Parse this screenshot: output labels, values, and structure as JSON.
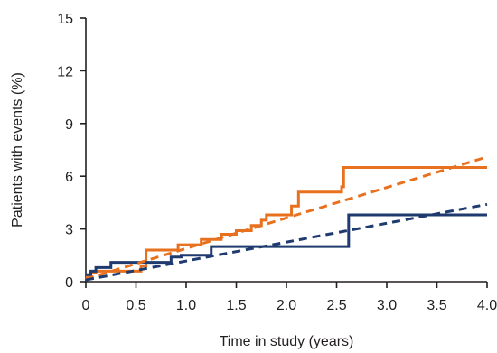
{
  "chart_data": {
    "type": "line",
    "title": "",
    "xlabel": "Time in study (years)",
    "ylabel": "Patients with events (%)",
    "xlim": [
      0,
      4.0
    ],
    "ylim": [
      0,
      15
    ],
    "x_ticks": [
      0,
      0.5,
      1.0,
      1.5,
      2.0,
      2.5,
      3.0,
      3.5,
      4.0
    ],
    "x_tick_labels": [
      "0",
      "0.5",
      "1.0",
      "1.5",
      "2.0",
      "2.5",
      "3.0",
      "3.5",
      "4.0"
    ],
    "y_ticks": [
      0,
      3,
      6,
      9,
      12,
      15
    ],
    "y_tick_labels": [
      "0",
      "3",
      "6",
      "9",
      "12",
      "15"
    ],
    "grid": false,
    "legend": "none",
    "series": [
      {
        "kind": "step",
        "color": "#e8711f",
        "points": [
          [
            0,
            0.3
          ],
          [
            0.05,
            0.5
          ],
          [
            0.1,
            0.6
          ],
          [
            0.55,
            0.9
          ],
          [
            0.6,
            1.8
          ],
          [
            0.92,
            2.1
          ],
          [
            1.15,
            2.4
          ],
          [
            1.35,
            2.7
          ],
          [
            1.5,
            2.9
          ],
          [
            1.65,
            3.2
          ],
          [
            1.75,
            3.5
          ],
          [
            1.8,
            3.8
          ],
          [
            2.05,
            4.3
          ],
          [
            2.12,
            5.1
          ],
          [
            2.55,
            5.4
          ],
          [
            2.57,
            6.5
          ],
          [
            4.0,
            6.5
          ]
        ]
      },
      {
        "kind": "step",
        "color": "#1f3a6e",
        "points": [
          [
            0,
            0.4
          ],
          [
            0.05,
            0.6
          ],
          [
            0.1,
            0.8
          ],
          [
            0.25,
            1.1
          ],
          [
            0.85,
            1.4
          ],
          [
            0.95,
            1.5
          ],
          [
            1.25,
            2.0
          ],
          [
            2.62,
            3.8
          ],
          [
            4.0,
            3.8
          ]
        ]
      },
      {
        "kind": "trend",
        "dashed": true,
        "color": "#e8711f",
        "points": [
          [
            0,
            0.15
          ],
          [
            4.0,
            7.1
          ]
        ]
      },
      {
        "kind": "trend",
        "dashed": true,
        "color": "#1f3a6e",
        "points": [
          [
            0,
            0.1
          ],
          [
            4.0,
            4.4
          ]
        ]
      }
    ]
  }
}
